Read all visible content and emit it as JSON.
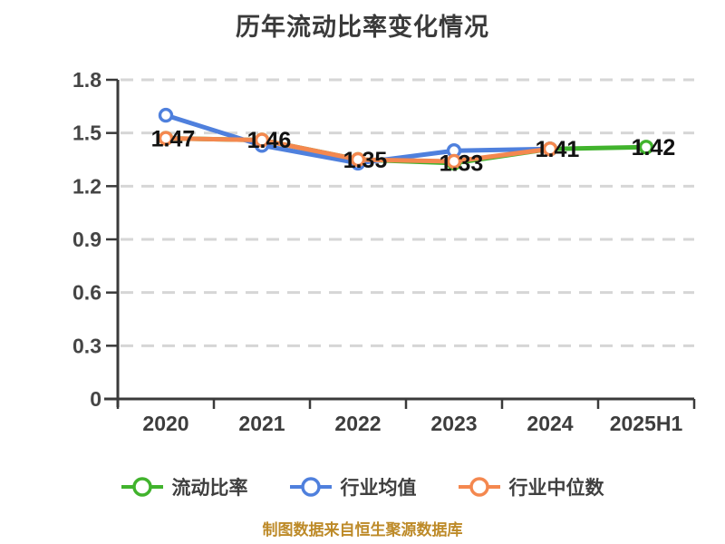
{
  "footer": {
    "source_note": "制图数据来自恒生聚源数据库",
    "color": "#bd8a28"
  },
  "chart_data": {
    "type": "line",
    "title": "历年流动比率变化情况",
    "categories": [
      "2020",
      "2021",
      "2022",
      "2023",
      "2024",
      "2025H1"
    ],
    "series": [
      {
        "name": "流动比率",
        "color": "#41b32d",
        "values": [
          1.47,
          1.46,
          1.35,
          1.33,
          1.41,
          1.42
        ],
        "labels": [
          "1.47",
          "1.46",
          "1.35",
          "1.33",
          "1.41",
          "1.42"
        ]
      },
      {
        "name": "行业均值",
        "color": "#4f80dd",
        "values": [
          1.6,
          1.43,
          1.33,
          1.4,
          1.41,
          null
        ],
        "labels": null
      },
      {
        "name": "行业中位数",
        "color": "#f4884f",
        "values": [
          1.47,
          1.46,
          1.35,
          1.34,
          1.41,
          null
        ],
        "labels": null
      }
    ],
    "ylim": [
      0,
      1.8
    ],
    "yticks": [
      0,
      0.3,
      0.6,
      0.9,
      1.2,
      1.5,
      1.8
    ],
    "ytick_labels": [
      "0",
      "0.3",
      "0.6",
      "0.9",
      "1.2",
      "1.5",
      "1.8"
    ],
    "xlabel": "",
    "ylabel": "",
    "grid": "horizontal-dashed",
    "legend_position": "bottom",
    "colors": {
      "axis": "#3a3a3a",
      "grid": "#d6d6d6",
      "tick_label": "#454545",
      "data_label": "#121212",
      "title": "#3a3a3a",
      "background": "#ffffff"
    }
  }
}
